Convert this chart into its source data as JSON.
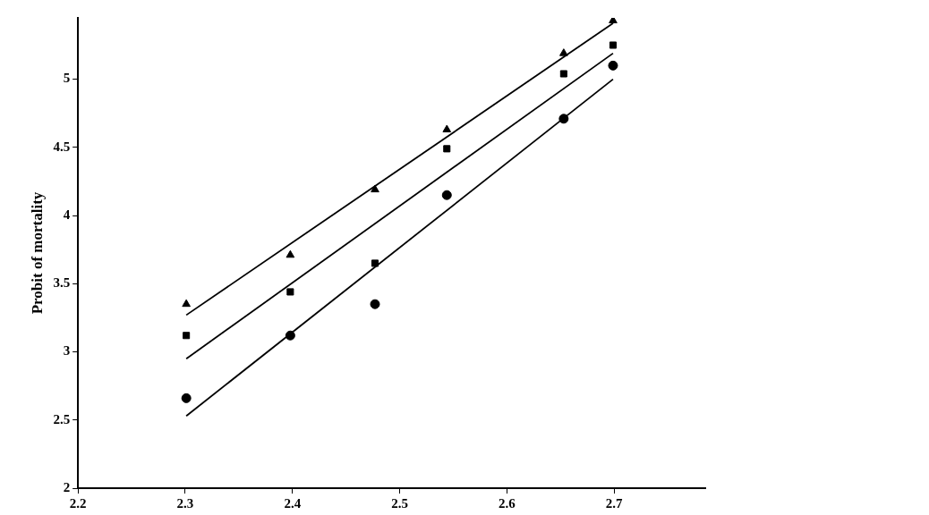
{
  "chart_data": {
    "type": "scatter",
    "ylabel": "Probit of mortality",
    "xlim": [
      2.2,
      2.785
    ],
    "xticks": [
      2.2,
      2.3,
      2.4,
      2.5,
      2.6,
      2.7
    ],
    "ylim": [
      2,
      5.45
    ],
    "yticks": [
      2,
      2.5,
      3,
      3.5,
      4,
      4.5,
      5
    ],
    "grid": false,
    "legend": false,
    "series": [
      {
        "marker": "triangle",
        "color": "#000000",
        "x": [
          2.301,
          2.398,
          2.477,
          2.544,
          2.653,
          2.699
        ],
        "values": [
          3.35,
          3.71,
          4.19,
          4.63,
          5.19,
          5.43
        ]
      },
      {
        "marker": "square",
        "color": "#000000",
        "x": [
          2.301,
          2.398,
          2.477,
          2.544,
          2.653,
          2.699
        ],
        "values": [
          3.12,
          3.44,
          3.65,
          4.49,
          5.04,
          5.25
        ]
      },
      {
        "marker": "circle",
        "color": "#000000",
        "x": [
          2.301,
          2.398,
          2.477,
          2.544,
          2.653,
          2.699
        ],
        "values": [
          2.66,
          3.12,
          3.35,
          4.15,
          4.71,
          5.1
        ]
      },
      {
        "type": "line",
        "marker": "none",
        "color": "#000000",
        "x": [
          2.301,
          2.699
        ],
        "values": [
          3.27,
          5.41
        ]
      },
      {
        "type": "line",
        "marker": "none",
        "color": "#000000",
        "x": [
          2.301,
          2.699
        ],
        "values": [
          2.95,
          5.19
        ]
      },
      {
        "type": "line",
        "marker": "none",
        "color": "#000000",
        "x": [
          2.301,
          2.699
        ],
        "values": [
          2.53,
          5.0
        ]
      }
    ]
  }
}
